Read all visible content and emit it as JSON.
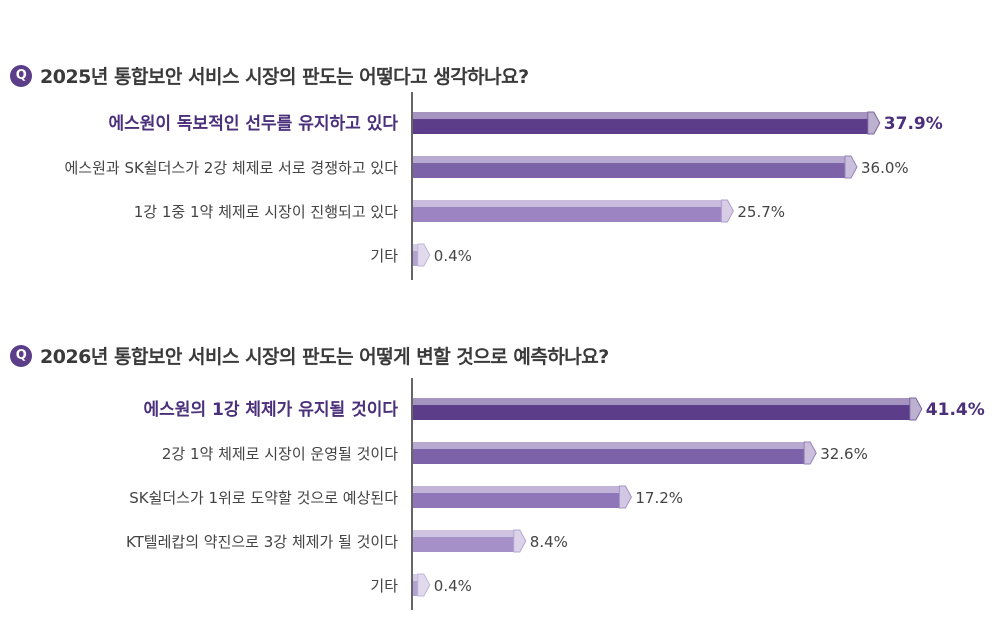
{
  "charts": [
    {
      "question_badge": "Q",
      "question": "2025년 통합보안 서비스 시장의 판도는 어떻다고 생각하나요?",
      "chart_data": {
        "type": "bar",
        "orientation": "horizontal",
        "categories": [
          "에스원이 독보적인 선두를 유지하고 있다",
          "에스원과 SK쉴더스가 2강 체제로 서로 경쟁하고 있다",
          "1강 1중 1약 체제로 시장이 진행되고 있다",
          "기타"
        ],
        "values": [
          37.9,
          36.0,
          25.7,
          0.4
        ],
        "value_labels": [
          "37.9%",
          "36.0%",
          "25.7%",
          "0.4%"
        ],
        "unit": "%",
        "colors": [
          "#5b3d8a",
          "#7c62a8",
          "#9b84c1",
          "#b3a3d1"
        ]
      }
    },
    {
      "question_badge": "Q",
      "question": "2026년 통합보안 서비스 시장의 판도는 어떻게 변할 것으로 예측하나요?",
      "chart_data": {
        "type": "bar",
        "orientation": "horizontal",
        "categories": [
          "에스원의 1강 체제가 유지될 것이다",
          "2강 1약 체제로 시장이 운영될 것이다",
          "SK쉴더스가 1위로 도약할 것으로 예상된다",
          "KT텔레캅의 약진으로 3강 체제가 될 것이다",
          "기타"
        ],
        "values": [
          41.4,
          32.6,
          17.2,
          8.4,
          0.4
        ],
        "value_labels": [
          "41.4%",
          "32.6%",
          "17.2%",
          "8.4%",
          "0.4%"
        ],
        "unit": "%",
        "colors": [
          "#5b3d8a",
          "#7c62a8",
          "#8e76b8",
          "#a591c8",
          "#b3a3d1"
        ]
      }
    }
  ]
}
